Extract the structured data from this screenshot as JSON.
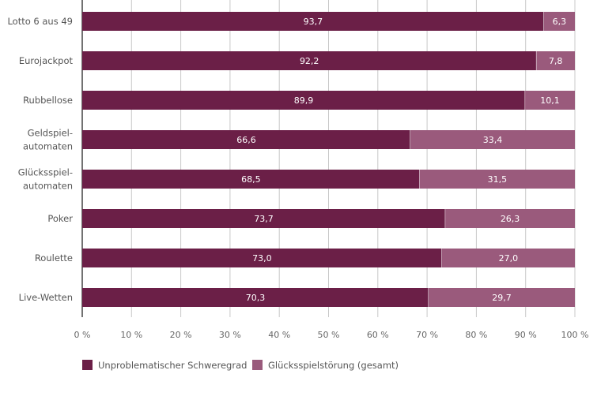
{
  "chart_data": {
    "type": "bar",
    "orientation": "horizontal",
    "stacked": true,
    "categories": [
      [
        "Lotto 6 aus 49"
      ],
      [
        "Eurojackpot"
      ],
      [
        "Rubbellose"
      ],
      [
        "Geldspiel-",
        "automaten"
      ],
      [
        "Glücksspiel-",
        "automaten"
      ],
      [
        "Poker"
      ],
      [
        "Roulette"
      ],
      [
        "Live-Wetten"
      ]
    ],
    "series": [
      {
        "name": "Unproblematischer Schweregrad",
        "color": "#6b1f47",
        "values": [
          93.7,
          92.2,
          89.9,
          66.6,
          68.5,
          73.7,
          73.0,
          70.3
        ],
        "labels": [
          "93,7",
          "92,2",
          "89,9",
          "66,6",
          "68,5",
          "73,7",
          "73,0",
          "70,3"
        ]
      },
      {
        "name": "Glücksspielstörung (gesamt)",
        "color": "#9a5a7c",
        "values": [
          6.3,
          7.8,
          10.1,
          33.4,
          31.5,
          26.3,
          27.0,
          29.7
        ],
        "labels": [
          "6,3",
          "7,8",
          "10,1",
          "33,4",
          "31,5",
          "26,3",
          "27,0",
          "29,7"
        ]
      }
    ],
    "xlim": [
      0,
      100
    ],
    "xticks": [
      "0 %",
      "10 %",
      "20 %",
      "30 %",
      "40 %",
      "50 %",
      "60 %",
      "70 %",
      "80 %",
      "90 %",
      "100 %"
    ],
    "grid": true,
    "legend": "bottom-left"
  }
}
